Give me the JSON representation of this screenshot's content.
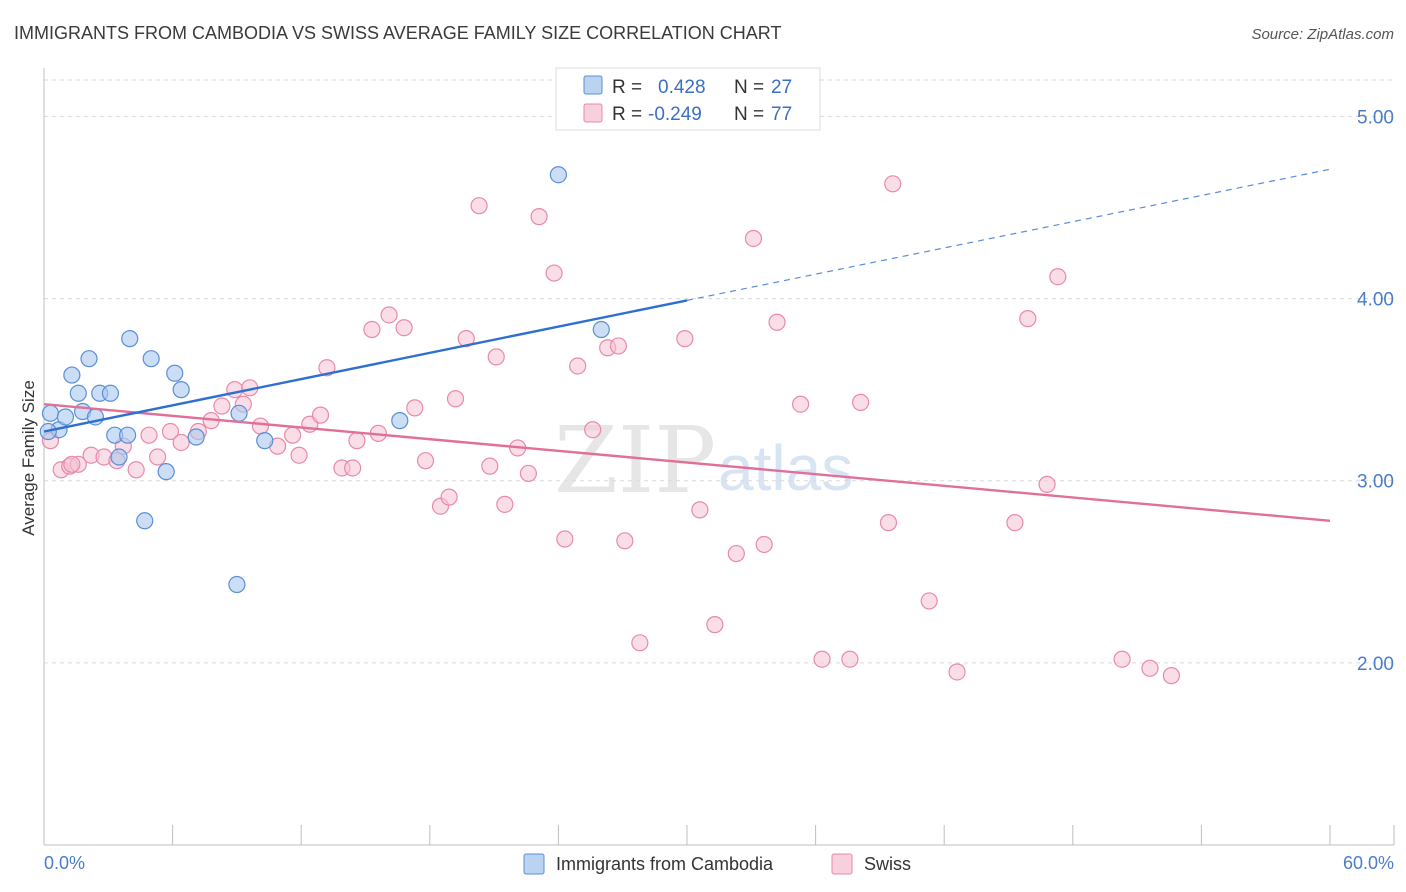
{
  "title": "IMMIGRANTS FROM CAMBODIA VS SWISS AVERAGE FAMILY SIZE CORRELATION CHART",
  "source": "Source: ZipAtlas.com",
  "watermark": {
    "zip": "ZIP",
    "atlas": "atlas"
  },
  "colors": {
    "blue_fill": "#a9c8ee",
    "blue_stroke": "#5b8fd6",
    "blue_line": "#2f6fd0",
    "pink_fill": "#f6c3d3",
    "pink_stroke": "#e88aa8",
    "pink_line": "#e0709a",
    "grid": "#d9d9d9",
    "tick_label": "#4a7cc9"
  },
  "legend": {
    "rows": [
      {
        "r_label": "R =",
        "r_value": "0.428",
        "n_label": "N =",
        "n_value": "27"
      },
      {
        "r_label": "R =",
        "r_value": "-0.249",
        "n_label": "N =",
        "n_value": "77"
      }
    ]
  },
  "bottom_legend": {
    "items": [
      {
        "label": "Immigrants from Cambodia"
      },
      {
        "label": "Swiss"
      }
    ]
  },
  "chart_data": {
    "type": "scatter",
    "title": "IMMIGRANTS FROM CAMBODIA VS SWISS AVERAGE FAMILY SIZE CORRELATION CHART",
    "xlabel": "",
    "ylabel": "Average Family Size",
    "xlim": [
      0,
      60
    ],
    "ylim": [
      1.0,
      5.2
    ],
    "x_tick_labels": {
      "min": "0.0%",
      "max": "60.0%"
    },
    "y_ticks": [
      2.0,
      3.0,
      4.0,
      5.0
    ],
    "y_tick_labels": [
      "2.00",
      "3.00",
      "4.00",
      "5.00"
    ],
    "grid": true,
    "series": [
      {
        "name": "Immigrants from Cambodia",
        "R": 0.428,
        "N": 27,
        "trend": {
          "x0": 0,
          "y0": 3.27,
          "x_solid_end": 30,
          "y_solid_end": 3.99,
          "x1": 60,
          "y1": 4.71
        },
        "points": [
          [
            0.3,
            3.37
          ],
          [
            0.7,
            3.28
          ],
          [
            1.0,
            3.35
          ],
          [
            1.3,
            3.58
          ],
          [
            1.6,
            3.48
          ],
          [
            1.8,
            3.38
          ],
          [
            2.1,
            3.67
          ],
          [
            2.4,
            3.35
          ],
          [
            2.6,
            3.48
          ],
          [
            3.1,
            3.48
          ],
          [
            3.3,
            3.25
          ],
          [
            3.5,
            3.13
          ],
          [
            3.9,
            3.25
          ],
          [
            4.0,
            3.78
          ],
          [
            4.7,
            2.78
          ],
          [
            5.0,
            3.67
          ],
          [
            5.7,
            3.05
          ],
          [
            6.1,
            3.59
          ],
          [
            6.4,
            3.5
          ],
          [
            7.1,
            3.24
          ],
          [
            9.0,
            2.43
          ],
          [
            9.1,
            3.37
          ],
          [
            10.3,
            3.22
          ],
          [
            16.6,
            3.33
          ],
          [
            24.0,
            4.68
          ],
          [
            26.0,
            3.83
          ],
          [
            0.2,
            3.27
          ]
        ]
      },
      {
        "name": "Swiss",
        "R": -0.249,
        "N": 77,
        "trend": {
          "x0": 0,
          "y0": 3.42,
          "x1": 60,
          "y1": 2.78
        },
        "points": [
          [
            0.3,
            3.22
          ],
          [
            0.8,
            3.06
          ],
          [
            1.2,
            3.08
          ],
          [
            1.6,
            3.09
          ],
          [
            2.2,
            3.14
          ],
          [
            2.8,
            3.13
          ],
          [
            3.4,
            3.11
          ],
          [
            3.7,
            3.19
          ],
          [
            4.3,
            3.06
          ],
          [
            4.9,
            3.25
          ],
          [
            5.3,
            3.13
          ],
          [
            5.9,
            3.27
          ],
          [
            6.4,
            3.21
          ],
          [
            7.2,
            3.27
          ],
          [
            7.8,
            3.33
          ],
          [
            8.3,
            3.41
          ],
          [
            8.9,
            3.5
          ],
          [
            9.3,
            3.42
          ],
          [
            9.6,
            3.51
          ],
          [
            10.1,
            3.3
          ],
          [
            10.9,
            3.19
          ],
          [
            11.6,
            3.25
          ],
          [
            11.9,
            3.14
          ],
          [
            12.4,
            3.31
          ],
          [
            12.9,
            3.36
          ],
          [
            13.2,
            3.62
          ],
          [
            13.9,
            3.07
          ],
          [
            14.4,
            3.07
          ],
          [
            14.6,
            3.22
          ],
          [
            15.3,
            3.83
          ],
          [
            15.6,
            3.26
          ],
          [
            16.1,
            3.91
          ],
          [
            16.8,
            3.84
          ],
          [
            17.3,
            3.4
          ],
          [
            17.8,
            3.11
          ],
          [
            18.5,
            2.86
          ],
          [
            18.9,
            2.91
          ],
          [
            19.2,
            3.45
          ],
          [
            19.7,
            3.78
          ],
          [
            20.3,
            4.51
          ],
          [
            20.8,
            3.08
          ],
          [
            21.1,
            3.68
          ],
          [
            21.5,
            2.87
          ],
          [
            22.1,
            3.18
          ],
          [
            22.6,
            3.04
          ],
          [
            23.1,
            4.45
          ],
          [
            23.8,
            4.14
          ],
          [
            24.3,
            2.68
          ],
          [
            24.9,
            3.63
          ],
          [
            25.6,
            3.28
          ],
          [
            26.3,
            3.73
          ],
          [
            26.8,
            3.74
          ],
          [
            27.1,
            2.67
          ],
          [
            27.8,
            2.11
          ],
          [
            29.9,
            3.78
          ],
          [
            30.6,
            2.84
          ],
          [
            31.3,
            2.21
          ],
          [
            32.3,
            2.6
          ],
          [
            33.1,
            4.33
          ],
          [
            33.6,
            2.65
          ],
          [
            34.2,
            3.87
          ],
          [
            35.3,
            3.42
          ],
          [
            36.3,
            2.02
          ],
          [
            37.6,
            2.02
          ],
          [
            38.1,
            3.43
          ],
          [
            39.6,
            4.63
          ],
          [
            39.4,
            2.77
          ],
          [
            41.3,
            2.34
          ],
          [
            42.6,
            1.95
          ],
          [
            45.3,
            2.77
          ],
          [
            45.9,
            3.89
          ],
          [
            46.8,
            2.98
          ],
          [
            47.3,
            4.12
          ],
          [
            50.3,
            2.02
          ],
          [
            51.6,
            1.97
          ],
          [
            52.6,
            1.93
          ],
          [
            1.3,
            3.09
          ]
        ]
      }
    ]
  }
}
